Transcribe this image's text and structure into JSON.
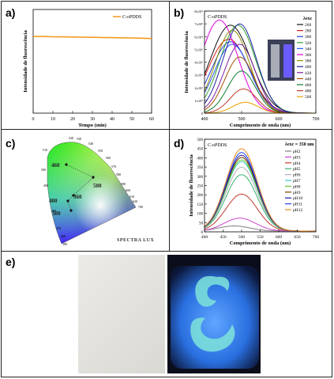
{
  "panel_labels": {
    "a": "a)",
    "b": "b)",
    "c": "c)",
    "d": "d)",
    "e": "e)"
  },
  "chart_data": [
    {
      "id": "a",
      "type": "line",
      "xlabel": "Tempo (min)",
      "ylabel": "Intensidade de fluorescência",
      "xlim": [
        0,
        60
      ],
      "xticks": [
        0,
        10,
        20,
        30,
        40,
        50,
        60
      ],
      "yticks": [],
      "legend_position": "top-right",
      "series": [
        {
          "name": "C-oPDDS",
          "color": "#f39a1e",
          "x": [
            0,
            5,
            10,
            15,
            20,
            25,
            30,
            35,
            40,
            45,
            50,
            55,
            60
          ],
          "y": [
            0.74,
            0.74,
            0.737,
            0.736,
            0.734,
            0.733,
            0.731,
            0.73,
            0.728,
            0.727,
            0.725,
            0.723,
            0.72
          ]
        }
      ]
    },
    {
      "id": "b",
      "type": "line",
      "annotation": "C-oPDDS",
      "xlabel": "Comprimento de onda (nm)",
      "ylabel": "Intensidade de fluorescência",
      "xlim": [
        400,
        700
      ],
      "xticks": [
        400,
        500,
        600,
        700
      ],
      "ylim": [
        0,
        8
      ],
      "yticks": [
        "0",
        "1x10⁵",
        "2x10⁵",
        "3x10⁵",
        "4x10⁵",
        "5x10⁵",
        "6x10⁵",
        "7x10⁵",
        "8x10⁵"
      ],
      "legend_title": "λexc",
      "legend_position": "top-right",
      "series": [
        {
          "name": "260",
          "color": "#111111",
          "peak": 470,
          "amp": 6.9,
          "w": 55
        },
        {
          "name": "280",
          "color": "#e41a1c",
          "peak": 465,
          "amp": 5.8,
          "w": 55
        },
        {
          "name": "300",
          "color": "#1f3fd6",
          "peak": 470,
          "amp": 5.6,
          "w": 52
        },
        {
          "name": "320",
          "color": "#2ca02c",
          "peak": 490,
          "amp": 6.9,
          "w": 48
        },
        {
          "name": "340",
          "color": "#3355ff",
          "peak": 475,
          "amp": 5.4,
          "w": 48
        },
        {
          "name": "360",
          "color": "#e000e0",
          "peak": 440,
          "amp": 7.3,
          "w": 50
        },
        {
          "name": "380",
          "color": "#8c8c00",
          "peak": 475,
          "amp": 6.5,
          "w": 46
        },
        {
          "name": "400",
          "color": "#1f1fa0",
          "peak": 495,
          "amp": 7.0,
          "w": 45
        },
        {
          "name": "420",
          "color": "#7b1fa2",
          "peak": 495,
          "amp": 5.4,
          "w": 42
        },
        {
          "name": "440",
          "color": "#a35200",
          "peak": 495,
          "amp": 4.4,
          "w": 40
        },
        {
          "name": "460",
          "color": "#0a7d2d",
          "peak": 500,
          "amp": 3.3,
          "w": 38
        },
        {
          "name": "480",
          "color": "#c0392b",
          "peak": 505,
          "amp": 1.9,
          "w": 36
        },
        {
          "name": "500",
          "color": "#e8a000",
          "peak": 510,
          "amp": 0.85,
          "w": 34
        }
      ],
      "inset": "photograph of two vials"
    },
    {
      "id": "c",
      "type": "scatter",
      "chart": "CIE 1931 chromaticity diagram",
      "wavelength_labels": [
        "520",
        "530",
        "540",
        "550",
        "560",
        "570",
        "580",
        "590",
        "600",
        "610",
        "620",
        "700",
        "510",
        "500",
        "490",
        "480",
        "470",
        "460",
        "380"
      ],
      "points": [
        {
          "label": "460",
          "x": 0.2,
          "y": 0.59
        },
        {
          "label": "500",
          "x": 0.27,
          "y": 0.52
        },
        {
          "label": "360",
          "x": 0.23,
          "y": 0.37
        },
        {
          "label": "400",
          "x": 0.2,
          "y": 0.35
        },
        {
          "label": "300",
          "x": 0.22,
          "y": 0.3
        }
      ],
      "logo_text": "SPECTRA LUX"
    },
    {
      "id": "d",
      "type": "line",
      "annotation": "C-oPDDS",
      "legend_title": "λexc = 350 nm",
      "legend_position": "top-right",
      "xlabel": "Comprimento de onda (nm)",
      "ylabel": "Intensidade de fluorescência",
      "xlim": [
        400,
        700
      ],
      "xticks": [
        400,
        450,
        500,
        550,
        600,
        650,
        700
      ],
      "ylim": [
        0,
        500
      ],
      "yticks": [
        0,
        50,
        100,
        150,
        200,
        250,
        300,
        350,
        400,
        450,
        500
      ],
      "series": [
        {
          "name": "pH2",
          "color": "#7f7f7f",
          "peak": 480,
          "amp": 28
        },
        {
          "name": "pH3",
          "color": "#cc44cc",
          "peak": 495,
          "amp": 70
        },
        {
          "name": "pH4",
          "color": "#c0392b",
          "peak": 500,
          "amp": 200
        },
        {
          "name": "pH5",
          "color": "#3cb371",
          "peak": 500,
          "amp": 305
        },
        {
          "name": "pH6",
          "color": "#b0b0b0",
          "peak": 500,
          "amp": 345
        },
        {
          "name": "pH7",
          "color": "#33cccc",
          "peak": 500,
          "amp": 375
        },
        {
          "name": "pH8",
          "color": "#66cc33",
          "peak": 500,
          "amp": 385
        },
        {
          "name": "pH9",
          "color": "#7a3b00",
          "peak": 500,
          "amp": 398
        },
        {
          "name": "pH10",
          "color": "#1a1a99",
          "peak": 500,
          "amp": 410
        },
        {
          "name": "pH11",
          "color": "#2244ff",
          "peak": 500,
          "amp": 425
        },
        {
          "name": "pH12",
          "color": "#f08a1e",
          "peak": 500,
          "amp": 445
        }
      ]
    }
  ]
}
